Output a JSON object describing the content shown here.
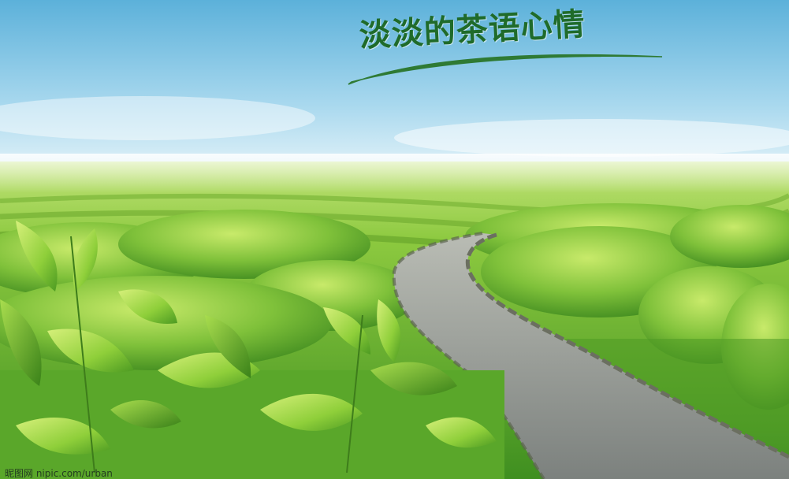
{
  "scene": {
    "headline": "淡淡的茶语心情",
    "watermark": "昵图网 nipic.com/urban",
    "colors": {
      "sky_top": "#5fb3dc",
      "sky_horizon": "#eef8fb",
      "field_far": "#9ed34a",
      "field_near": "#3f8f20",
      "path": "#8a8f8c",
      "headline": "#1f6b2a"
    }
  }
}
